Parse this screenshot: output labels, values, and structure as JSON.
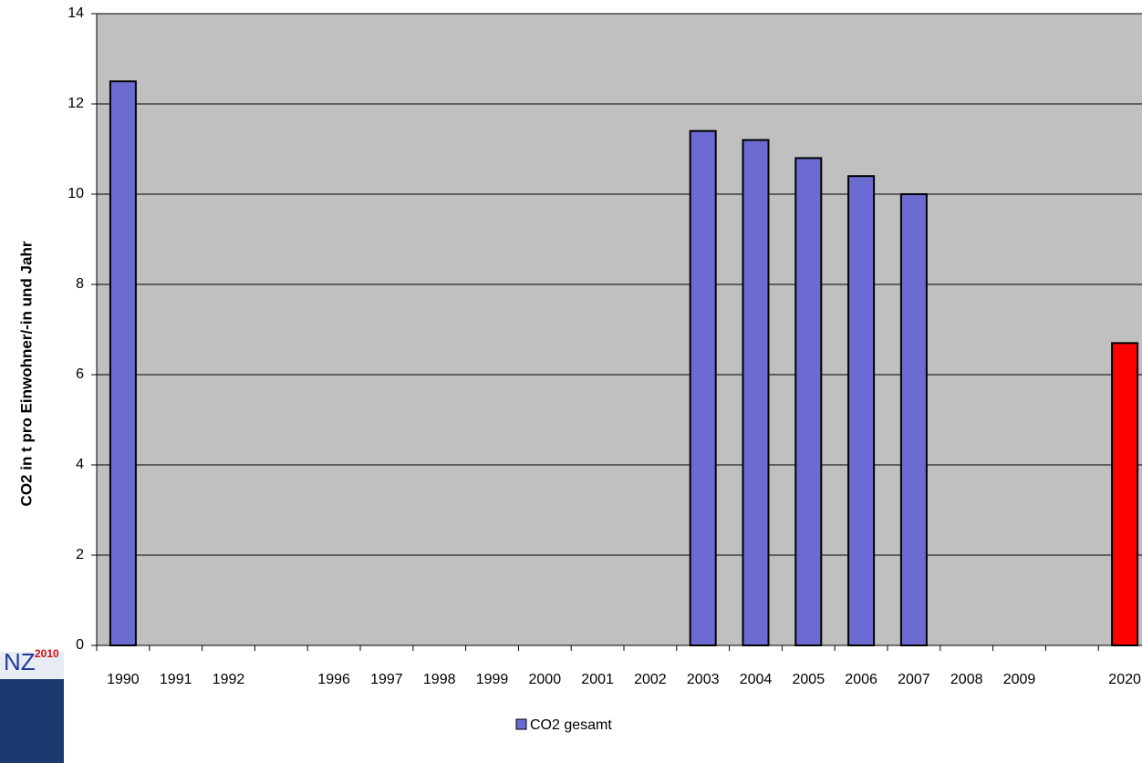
{
  "chart_data": {
    "type": "bar",
    "y_label": "CO2 in t pro Einwohner/-in und Jahr",
    "categories": [
      "1990",
      "1991",
      "1992",
      null,
      "1996",
      "1997",
      "1998",
      "1999",
      "2000",
      "2001",
      "2002",
      "2003",
      "2004",
      "2005",
      "2006",
      "2007",
      "2008",
      "2009",
      null,
      "2020"
    ],
    "series": [
      {
        "name": "CO2 gesamt",
        "color": "#6b6bd1",
        "values": [
          12.5,
          null,
          null,
          null,
          null,
          null,
          null,
          null,
          null,
          null,
          null,
          11.4,
          11.2,
          10.8,
          10.4,
          10.0,
          null,
          null,
          null,
          6.7
        ]
      }
    ],
    "bar_colors": [
      "#6b6bd1",
      "#6b6bd1",
      "#6b6bd1",
      "#6b6bd1",
      "#6b6bd1",
      "#6b6bd1",
      "#6b6bd1",
      "#6b6bd1",
      "#6b6bd1",
      "#6b6bd1",
      "#6b6bd1",
      "#6b6bd1",
      "#6b6bd1",
      "#6b6bd1",
      "#6b6bd1",
      "#6b6bd1",
      "#6b6bd1",
      "#6b6bd1",
      "#6b6bd1",
      "#ff0000"
    ],
    "ylim": [
      0,
      14
    ],
    "yticks": [
      0,
      2,
      4,
      6,
      8,
      10,
      12,
      14
    ],
    "grid": true,
    "plot_background": "#c0c0c0",
    "legend": "bottom"
  },
  "logo": {
    "text": "NZ",
    "year": "2010"
  }
}
